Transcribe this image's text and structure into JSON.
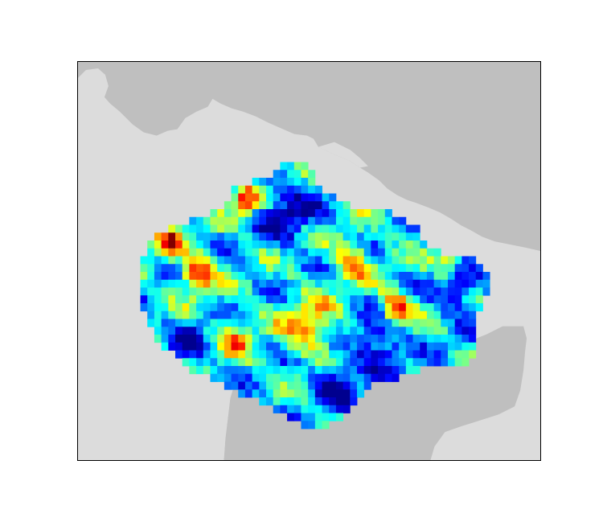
{
  "map": {
    "colors": {
      "ocean": "#bfbfbf",
      "land": "#dcdcdc",
      "frame": "#000000"
    },
    "colormap": "jet",
    "colormap_stops": [
      "#00008f",
      "#0000ff",
      "#0080ff",
      "#00ffff",
      "#80ff80",
      "#ffff00",
      "#ff8000",
      "#ff0000",
      "#800000"
    ],
    "field": {
      "base_level": 0.35,
      "features": [
        {
          "kind": "low",
          "lon": -56.0,
          "lat": -8.5,
          "strength": 0.35,
          "radius": 2.2
        },
        {
          "kind": "low",
          "lon": -64.5,
          "lat": 2.5,
          "strength": 0.3,
          "radius": 2.5
        },
        {
          "kind": "low",
          "lon": -60.0,
          "lat": -11.5,
          "strength": 0.35,
          "radius": 2.0
        },
        {
          "kind": "low",
          "lon": -48.5,
          "lat": -4.0,
          "strength": 0.3,
          "radius": 2.0
        },
        {
          "kind": "low",
          "lon": -73.5,
          "lat": -8.5,
          "strength": 0.25,
          "radius": 1.8
        },
        {
          "kind": "high",
          "lon": -54.5,
          "lat": -5.5,
          "strength": 0.55,
          "radius": 1.4
        },
        {
          "kind": "high",
          "lon": -73.0,
          "lat": -2.5,
          "strength": 0.55,
          "radius": 1.5
        },
        {
          "kind": "high",
          "lon": -68.5,
          "lat": 3.5,
          "strength": 0.5,
          "radius": 1.2
        },
        {
          "kind": "high",
          "lon": -75.5,
          "lat": 0.0,
          "strength": 0.45,
          "radius": 1.2
        },
        {
          "kind": "high",
          "lon": -62.5,
          "lat": -7.0,
          "strength": 0.35,
          "radius": 2.5
        },
        {
          "kind": "high",
          "lon": -49.5,
          "lat": -1.5,
          "strength": 0.3,
          "radius": 1.5
        },
        {
          "kind": "high",
          "lon": -58.5,
          "lat": -1.5,
          "strength": 0.35,
          "radius": 1.8
        },
        {
          "kind": "high",
          "lon": -69.5,
          "lat": -8.0,
          "strength": 0.3,
          "radius": 1.8
        }
      ]
    }
  }
}
